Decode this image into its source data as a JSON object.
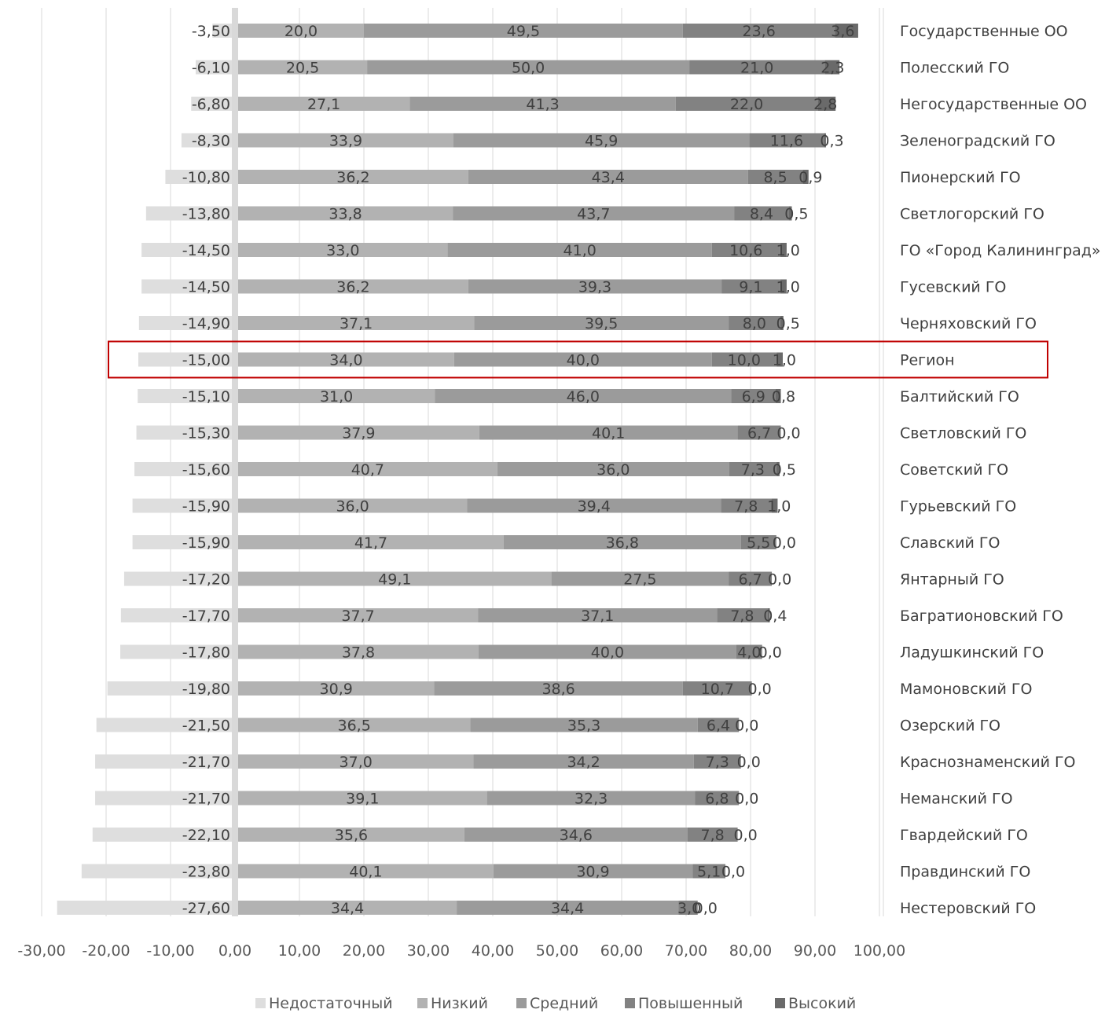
{
  "chart_data": {
    "type": "bar",
    "orientation": "horizontal",
    "stacked": true,
    "categories": [
      "Государственные ОО",
      "Полесский ГО",
      "Негосударственные ОО",
      "Зеленоградский ГО",
      "Пионерский ГО",
      "Светлогорский ГО",
      "ГО «Город Калининград»",
      "Гусевский ГО",
      "Черняховский ГО",
      "Регион",
      "Балтийский ГО",
      "Светловский ГО",
      "Советский ГО",
      "Гурьевский ГО",
      "Славский ГО",
      "Янтарный ГО",
      "Багратионовский ГО",
      "Ладушкинский ГО",
      "Мамоновский ГО",
      "Озерский ГО",
      "Краснознаменский ГО",
      "Неманский ГО",
      "Гвардейский ГО",
      "Правдинский ГО",
      "Нестеровский ГО"
    ],
    "negative_labels": [
      "-3,50",
      "-6,10",
      "-6,80",
      "-8,30",
      "-10,80",
      "-13,80",
      "-14,50",
      "-14,50",
      "-14,90",
      "-15,00",
      "-15,10",
      "-15,30",
      "-15,60",
      "-15,90",
      "-15,90",
      "-17,20",
      "-17,70",
      "-17,80",
      "-19,80",
      "-21,50",
      "-21,70",
      "-21,70",
      "-22,10",
      "-23,80",
      "-27,60"
    ],
    "series": [
      {
        "name": "Недостаточный",
        "color": "#dedede",
        "values": [
          -3.5,
          -6.1,
          -6.8,
          -8.3,
          -10.8,
          -13.8,
          -14.5,
          -14.5,
          -14.9,
          -15.0,
          -15.1,
          -15.3,
          -15.6,
          -15.9,
          -15.9,
          -17.2,
          -17.7,
          -17.8,
          -19.8,
          -21.5,
          -21.7,
          -21.7,
          -22.1,
          -23.8,
          -27.6
        ]
      },
      {
        "name": "Низкий",
        "color": "#b2b2b2",
        "values": [
          20.0,
          20.5,
          27.1,
          33.9,
          36.2,
          33.8,
          33.0,
          36.2,
          37.1,
          34.0,
          31.0,
          37.9,
          40.7,
          36.0,
          41.7,
          49.1,
          37.7,
          37.8,
          30.9,
          36.5,
          37.0,
          39.1,
          35.6,
          40.1,
          34.4
        ],
        "labels": [
          "20,0",
          "20,5",
          "27,1",
          "33,9",
          "36,2",
          "33,8",
          "33,0",
          "36,2",
          "37,1",
          "34,0",
          "31,0",
          "37,9",
          "40,7",
          "36,0",
          "41,7",
          "49,1",
          "37,7",
          "37,8",
          "30,9",
          "36,5",
          "37,0",
          "39,1",
          "35,6",
          "40,1",
          "34,4"
        ]
      },
      {
        "name": "Средний",
        "color": "#9b9b9b",
        "values": [
          49.5,
          50.0,
          41.3,
          45.9,
          43.4,
          43.7,
          41.0,
          39.3,
          39.5,
          40.0,
          46.0,
          40.1,
          36.0,
          39.4,
          36.8,
          27.5,
          37.1,
          40.0,
          38.6,
          35.3,
          34.2,
          32.3,
          34.6,
          30.9,
          34.4
        ],
        "labels": [
          "49,5",
          "50,0",
          "41,3",
          "45,9",
          "43,4",
          "43,7",
          "41,0",
          "39,3",
          "39,5",
          "40,0",
          "46,0",
          "40,1",
          "36,0",
          "39,4",
          "36,8",
          "27,5",
          "37,1",
          "40,0",
          "38,6",
          "35,3",
          "34,2",
          "32,3",
          "34,6",
          "30,9",
          "34,4"
        ]
      },
      {
        "name": "Повышенный",
        "color": "#828282",
        "values": [
          23.6,
          21.0,
          22.0,
          11.6,
          8.5,
          8.4,
          10.6,
          9.1,
          8.0,
          10.0,
          6.9,
          6.7,
          7.3,
          7.8,
          5.5,
          6.7,
          7.8,
          4.0,
          10.7,
          6.4,
          7.3,
          6.8,
          7.8,
          5.1,
          3.0
        ],
        "labels": [
          "23,6",
          "21,0",
          "22,0",
          "11,6",
          "8,5",
          "8,4",
          "10,6",
          "9,1",
          "8,0",
          "10,0",
          "6,9",
          "6,7",
          "7,3",
          "7,8",
          "5,5",
          "6,7",
          "7,8",
          "4,0",
          "10,7",
          "6,4",
          "7,3",
          "6,8",
          "7,8",
          "5,1",
          "3,0"
        ]
      },
      {
        "name": "Высокий",
        "color": "#6a6a6a",
        "values": [
          3.6,
          2.3,
          2.8,
          0.3,
          0.9,
          0.5,
          1.0,
          1.0,
          0.5,
          1.0,
          0.8,
          0.0,
          0.5,
          1.0,
          0.0,
          0.0,
          0.4,
          0.0,
          0.0,
          0.0,
          0.0,
          0.0,
          0.0,
          0.0,
          0.0
        ],
        "labels": [
          "3,6",
          "2,3",
          "2,8",
          "0,3",
          "0,9",
          "0,5",
          "1,0",
          "1,0",
          "0,5",
          "1,0",
          "0,8",
          "0,0",
          "0,5",
          "1,0",
          "0,0",
          "0,0",
          "0,4",
          "0,0",
          "0,0",
          "0,0",
          "0,0",
          "0,0",
          "0,0",
          "0,0",
          "0,0"
        ]
      }
    ],
    "xlim": [
      -30,
      100
    ],
    "x_ticks": [
      -30,
      -20,
      -10,
      0,
      10,
      20,
      30,
      40,
      50,
      60,
      70,
      80,
      90,
      100
    ],
    "x_tick_labels": [
      "-30,00",
      "-20,00",
      "-10,00",
      "0,00",
      "10,00",
      "20,00",
      "30,00",
      "40,00",
      "50,00",
      "60,00",
      "70,00",
      "80,00",
      "90,00",
      "100,00"
    ],
    "grid": "vertical",
    "legend_position": "bottom",
    "highlighted_category": "Регион",
    "highlight_color": "#c00000",
    "title": "",
    "xlabel": "",
    "ylabel": ""
  }
}
